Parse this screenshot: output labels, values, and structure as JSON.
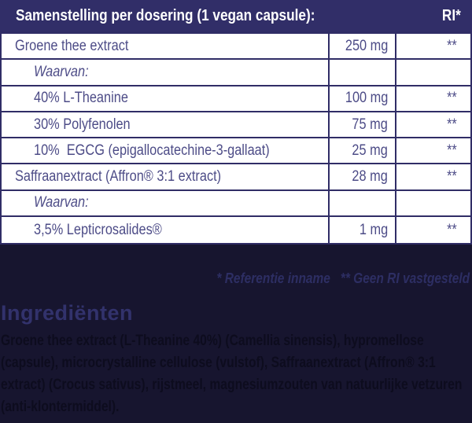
{
  "colors": {
    "header_bg": "#312e68",
    "border": "#302d66",
    "table_text": "#4d4c87",
    "page_bg": "#17152f",
    "footnote_text": "#2d2e63",
    "heading_text": "#32326c",
    "paragraph_text": "#0d0c1e",
    "header_text": "#ffffff"
  },
  "table": {
    "header": {
      "title": "Samenstelling per dosering (1 vegan capsule):",
      "ri_label": "RI*"
    },
    "rows": [
      {
        "name": "Groene thee extract",
        "amount": "250 mg",
        "ri": "**"
      },
      {
        "name": "Waarvan:",
        "amount": "",
        "ri": ""
      },
      {
        "name": "40% L-Theanine",
        "amount": "100 mg",
        "ri": "**"
      },
      {
        "name": "30% Polyfenolen",
        "amount": "75 mg",
        "ri": "**"
      },
      {
        "name": "10%  EGCG (epigallocatechine-3-gallaat)",
        "amount": "25 mg",
        "ri": "**"
      },
      {
        "name": "Saffraanextract (Affron® 3:1 extract)",
        "amount": "28 mg",
        "ri": "**"
      },
      {
        "name": "Waarvan:",
        "amount": "",
        "ri": ""
      },
      {
        "name": "3,5% Lepticrosalides®",
        "amount": "1 mg",
        "ri": "**"
      }
    ]
  },
  "footnote": "* Referentie inname   ** Geen RI vastgesteld",
  "ingredients": {
    "heading": "Ingrediënten",
    "text": "Groene thee extract (L-Theanine 40%) (Camellia sinensis), hypromellose (capsule), microcrystalline cellulose (vulstof), Saffraanextract (Affron® 3:1 extract) (Crocus sativus), rijstmeel, magnesiumzouten van natuurlijke vetzuren (anti-klontermiddel)."
  }
}
